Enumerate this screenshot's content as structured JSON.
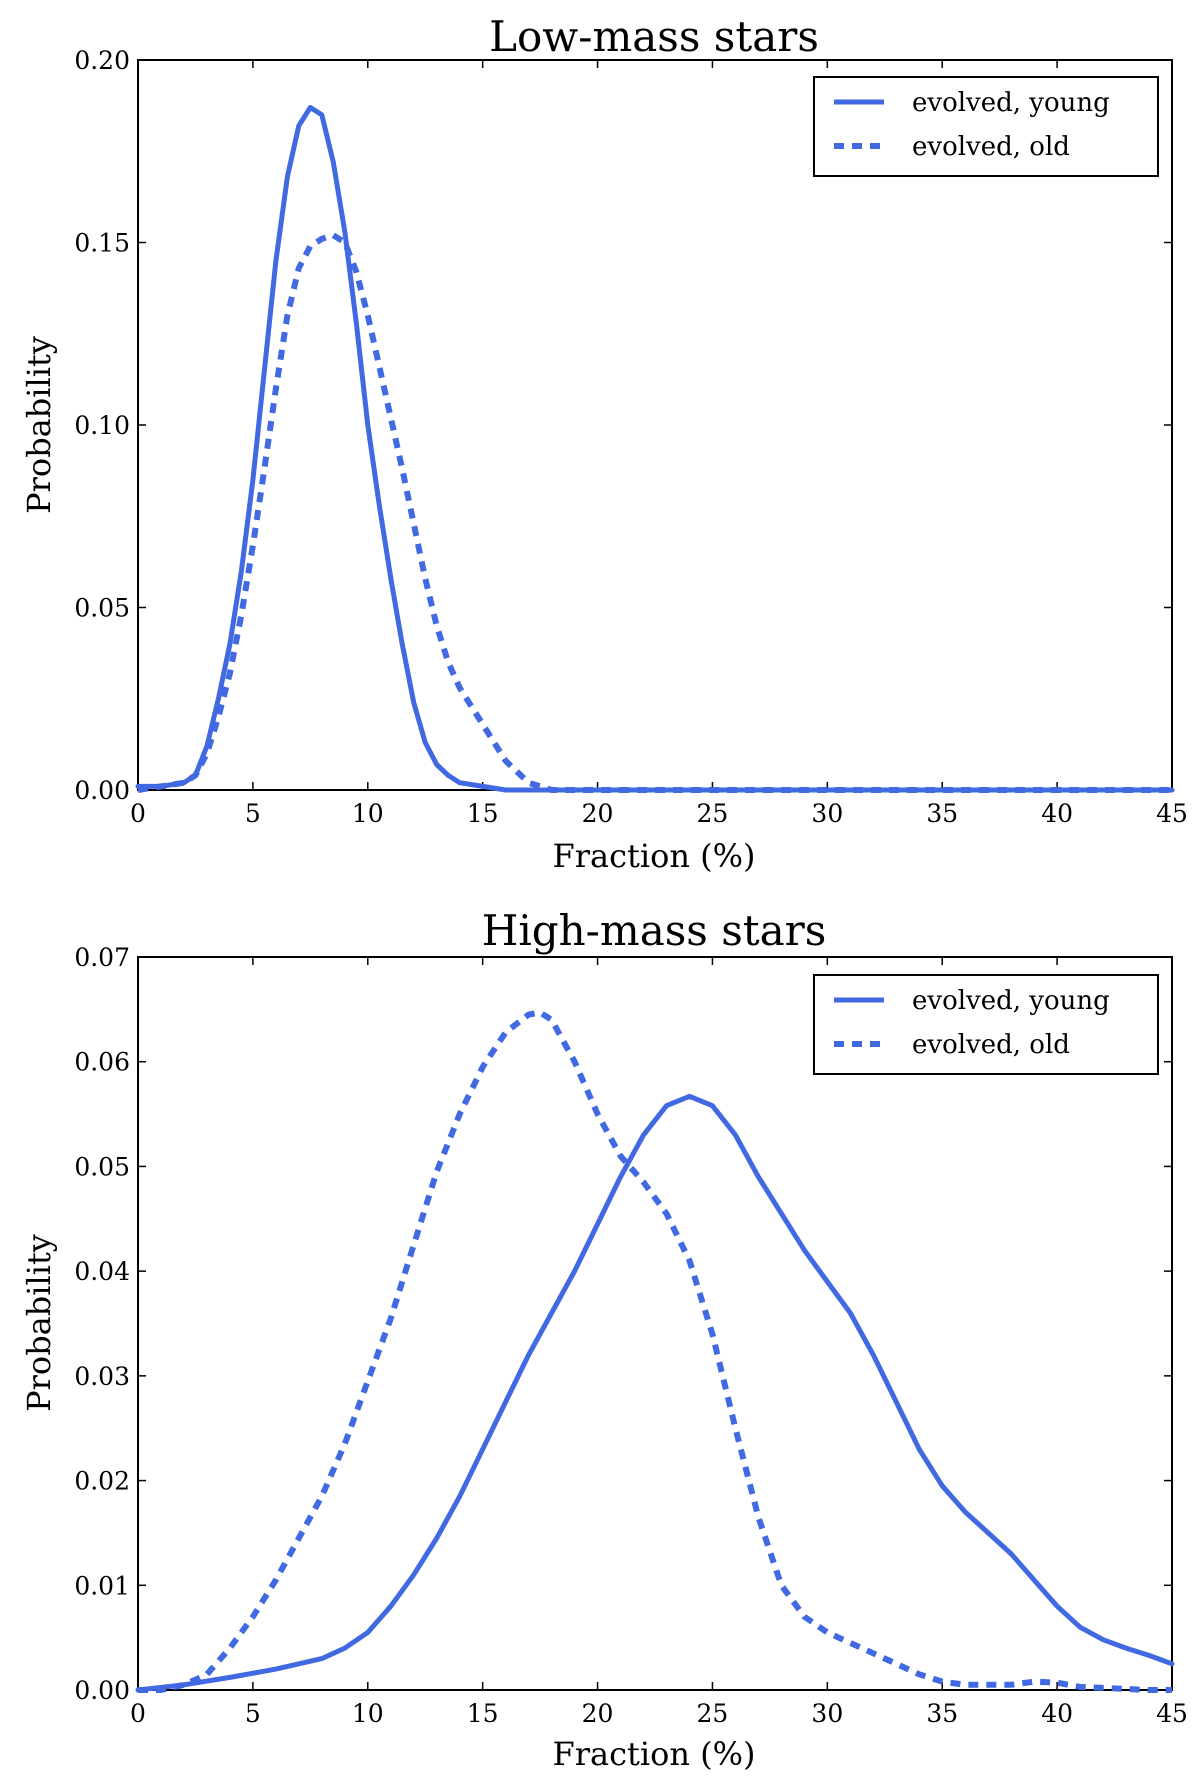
{
  "chart_data": [
    {
      "type": "line",
      "title": "Low-mass stars",
      "xlabel": "Fraction (%)",
      "ylabel": "Probability",
      "xlim": [
        0,
        45
      ],
      "ylim": [
        0,
        0.2
      ],
      "xticks": [
        "0",
        "5",
        "10",
        "15",
        "20",
        "25",
        "30",
        "35",
        "40",
        "45"
      ],
      "yticks": [
        "0.00",
        "0.05",
        "0.10",
        "0.15",
        "0.20"
      ],
      "legend": "top-right",
      "color": "#4169e1",
      "series": [
        {
          "name": "evolved, young",
          "style": "solid",
          "x": [
            0,
            1,
            2,
            2.5,
            3,
            3.5,
            4,
            4.5,
            5,
            5.5,
            6,
            6.5,
            7,
            7.5,
            8,
            8.5,
            9,
            9.5,
            10,
            10.5,
            11,
            11.5,
            12,
            12.5,
            13,
            13.5,
            14,
            15,
            16,
            17,
            20,
            25,
            30,
            35,
            40,
            45
          ],
          "y": [
            0.001,
            0.001,
            0.002,
            0.004,
            0.012,
            0.025,
            0.04,
            0.06,
            0.085,
            0.115,
            0.145,
            0.168,
            0.182,
            0.187,
            0.185,
            0.172,
            0.153,
            0.128,
            0.1,
            0.078,
            0.058,
            0.04,
            0.024,
            0.013,
            0.007,
            0.004,
            0.002,
            0.001,
            0,
            0,
            0,
            0,
            0,
            0,
            0,
            0
          ]
        },
        {
          "name": "evolved, old",
          "style": "dashed",
          "x": [
            0,
            1,
            2,
            2.5,
            3,
            3.5,
            4,
            4.5,
            5,
            5.5,
            6,
            6.5,
            7,
            7.5,
            8,
            8.5,
            9,
            9.5,
            10,
            10.5,
            11,
            11.5,
            12,
            12.5,
            13,
            13.5,
            14,
            15,
            16,
            17,
            17.5,
            18,
            20,
            25,
            30,
            35,
            40,
            45
          ],
          "y": [
            0,
            0.001,
            0.002,
            0.004,
            0.01,
            0.02,
            0.032,
            0.048,
            0.067,
            0.088,
            0.11,
            0.13,
            0.143,
            0.149,
            0.151,
            0.152,
            0.15,
            0.142,
            0.13,
            0.116,
            0.102,
            0.088,
            0.073,
            0.058,
            0.045,
            0.035,
            0.028,
            0.018,
            0.008,
            0.002,
            0.001,
            0,
            0,
            0,
            0,
            0,
            0,
            0
          ]
        }
      ]
    },
    {
      "type": "line",
      "title": "High-mass stars",
      "xlabel": "Fraction (%)",
      "ylabel": "Probability",
      "xlim": [
        0,
        45
      ],
      "ylim": [
        0,
        0.07
      ],
      "xticks": [
        "0",
        "5",
        "10",
        "15",
        "20",
        "25",
        "30",
        "35",
        "40",
        "45"
      ],
      "yticks": [
        "0.00",
        "0.01",
        "0.02",
        "0.03",
        "0.04",
        "0.05",
        "0.06",
        "0.07"
      ],
      "legend": "top-right",
      "color": "#4169e1",
      "series": [
        {
          "name": "evolved, young",
          "style": "solid",
          "x": [
            0,
            2,
            4,
            6,
            8,
            9,
            10,
            11,
            12,
            13,
            14,
            15,
            16,
            17,
            18,
            19,
            20,
            21,
            22,
            23,
            24,
            25,
            26,
            27,
            28,
            29,
            30,
            31,
            32,
            33,
            34,
            35,
            36,
            37,
            38,
            39,
            40,
            41,
            42,
            43,
            44,
            45
          ],
          "y": [
            0,
            0.0005,
            0.0012,
            0.002,
            0.003,
            0.004,
            0.0055,
            0.008,
            0.011,
            0.0145,
            0.0185,
            0.023,
            0.0275,
            0.032,
            0.036,
            0.04,
            0.0445,
            0.049,
            0.053,
            0.0558,
            0.0567,
            0.0558,
            0.053,
            0.049,
            0.0455,
            0.042,
            0.039,
            0.036,
            0.032,
            0.0275,
            0.023,
            0.0195,
            0.017,
            0.015,
            0.013,
            0.0105,
            0.008,
            0.006,
            0.0048,
            0.004,
            0.0033,
            0.0025
          ]
        },
        {
          "name": "evolved, old",
          "style": "dashed",
          "x": [
            0,
            1,
            2,
            3,
            4,
            5,
            6,
            7,
            8,
            9,
            10,
            11,
            12,
            13,
            14,
            15,
            16,
            17,
            17.5,
            18,
            19,
            20,
            21,
            22,
            23,
            24,
            25,
            26,
            27,
            28,
            29,
            30,
            31,
            32,
            33,
            34,
            35,
            36,
            37,
            38,
            39,
            40,
            41,
            42,
            43,
            44,
            45
          ],
          "y": [
            0,
            0,
            0.0005,
            0.0015,
            0.004,
            0.007,
            0.0105,
            0.0145,
            0.0185,
            0.0235,
            0.0295,
            0.0355,
            0.0425,
            0.0495,
            0.055,
            0.0595,
            0.0628,
            0.0645,
            0.0647,
            0.064,
            0.06,
            0.055,
            0.051,
            0.0485,
            0.0455,
            0.041,
            0.034,
            0.025,
            0.0165,
            0.01,
            0.007,
            0.0055,
            0.0045,
            0.0035,
            0.0025,
            0.0015,
            0.0008,
            0.0005,
            0.0005,
            0.0005,
            0.0008,
            0.0007,
            0.0003,
            0.0002,
            0.0001,
            0,
            0
          ]
        }
      ]
    }
  ]
}
